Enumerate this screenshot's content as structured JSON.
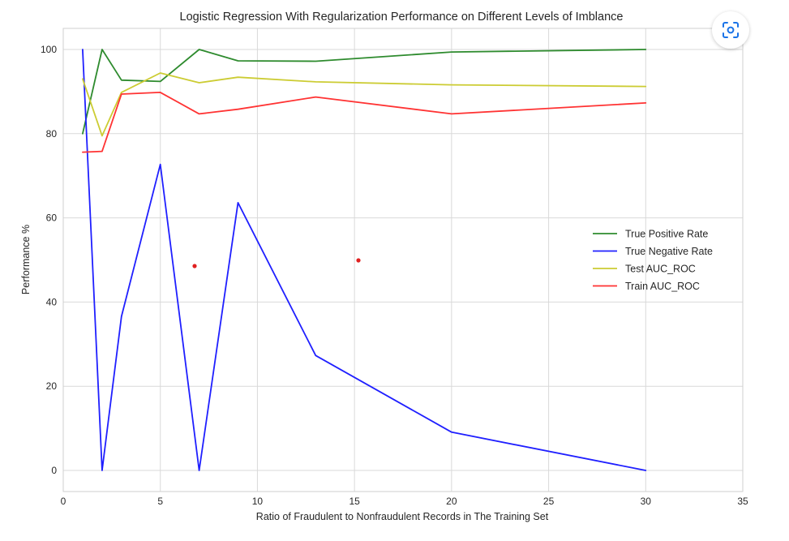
{
  "chart_data": {
    "type": "line",
    "title": "Logistic Regression With Regularization Performance on Different Levels of Imblance",
    "xlabel": "Ratio of Fraudulent to Nonfraudulent Records in The Training Set",
    "ylabel": "Performance %",
    "xlim": [
      0,
      35
    ],
    "ylim": [
      -5,
      105
    ],
    "xticks": [
      0,
      5,
      10,
      15,
      20,
      25,
      30,
      35
    ],
    "yticks": [
      0,
      20,
      40,
      60,
      80,
      100
    ],
    "grid": true,
    "legend": "center-right",
    "series": [
      {
        "name": "True Positive Rate",
        "color": "#2e8b2e",
        "x": [
          1,
          2,
          3,
          5,
          7,
          9,
          13,
          20,
          30
        ],
        "y": [
          80.0,
          100.0,
          92.7,
          92.4,
          100.0,
          97.3,
          97.2,
          99.4,
          100.0
        ]
      },
      {
        "name": "True Negative Rate",
        "color": "#1f1fff",
        "x": [
          1,
          2,
          3,
          5,
          7,
          9,
          13,
          20,
          30
        ],
        "y": [
          100.0,
          0.0,
          36.6,
          72.7,
          0.0,
          63.6,
          27.3,
          9.1,
          0.0
        ]
      },
      {
        "name": "Test AUC_ROC",
        "color": "#cccc33",
        "x": [
          1,
          2,
          3,
          5,
          7,
          9,
          13,
          20,
          30
        ],
        "y": [
          93.0,
          79.5,
          89.8,
          94.4,
          92.1,
          93.4,
          92.3,
          91.6,
          91.2
        ]
      },
      {
        "name": "Train AUC_ROC",
        "color": "#ff3333",
        "x": [
          1,
          2,
          3,
          5,
          7,
          9,
          13,
          20,
          30
        ],
        "y": [
          75.6,
          75.8,
          89.4,
          89.8,
          84.7,
          85.8,
          88.7,
          84.7,
          87.3
        ]
      }
    ]
  },
  "ui": {
    "lens_button_icon": "visual-search-icon"
  }
}
